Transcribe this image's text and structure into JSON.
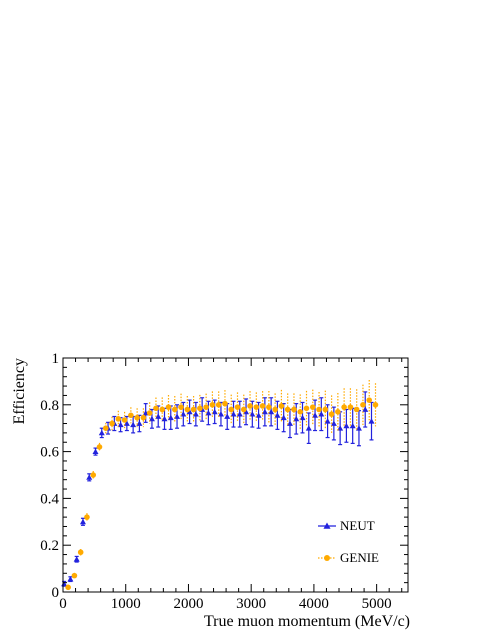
{
  "chart_data": {
    "type": "scatter",
    "xlabel": "True muon momentum (MeV/c)",
    "ylabel": "Efficiency",
    "xlim": [
      0,
      5500
    ],
    "ylim": [
      0,
      1
    ],
    "x_ticks": [
      0,
      1000,
      2000,
      3000,
      4000,
      5000
    ],
    "x_tick_labels": [
      "0",
      "1000",
      "2000",
      "3000",
      "4000",
      "5000"
    ],
    "y_ticks": [
      0,
      0.2,
      0.4,
      0.6,
      0.8,
      1
    ],
    "y_tick_labels": [
      "0",
      "0.2",
      "0.4",
      "0.6",
      "0.8",
      "1"
    ],
    "grid": false,
    "legend_position": "bottom-right",
    "series": [
      {
        "name": "NEUT",
        "color": "#2222dd",
        "marker": "triangle",
        "x": [
          50,
          150,
          250,
          350,
          450,
          550,
          650,
          750,
          850,
          950,
          1050,
          1150,
          1250,
          1350,
          1450,
          1550,
          1650,
          1750,
          1850,
          1950,
          2050,
          2150,
          2250,
          2350,
          2450,
          2550,
          2650,
          2750,
          2850,
          2950,
          3050,
          3150,
          3250,
          3350,
          3450,
          3550,
          3650,
          3750,
          3850,
          3950,
          4050,
          4150,
          4250,
          4350,
          4450,
          4550,
          4650,
          4750,
          4850,
          4950
        ],
        "y": [
          0.035,
          0.055,
          0.14,
          0.3,
          0.49,
          0.6,
          0.68,
          0.7,
          0.72,
          0.715,
          0.72,
          0.715,
          0.72,
          0.765,
          0.74,
          0.75,
          0.74,
          0.745,
          0.75,
          0.76,
          0.77,
          0.76,
          0.78,
          0.765,
          0.77,
          0.76,
          0.75,
          0.76,
          0.76,
          0.77,
          0.76,
          0.755,
          0.77,
          0.77,
          0.755,
          0.745,
          0.72,
          0.74,
          0.745,
          0.7,
          0.755,
          0.76,
          0.73,
          0.72,
          0.7,
          0.71,
          0.71,
          0.7,
          0.78,
          0.73
        ],
        "err": [
          0.01,
          0.01,
          0.012,
          0.015,
          0.015,
          0.015,
          0.02,
          0.025,
          0.03,
          0.03,
          0.03,
          0.035,
          0.035,
          0.04,
          0.04,
          0.045,
          0.045,
          0.05,
          0.05,
          0.05,
          0.05,
          0.05,
          0.05,
          0.05,
          0.05,
          0.05,
          0.055,
          0.055,
          0.055,
          0.055,
          0.055,
          0.055,
          0.06,
          0.06,
          0.06,
          0.06,
          0.06,
          0.065,
          0.065,
          0.065,
          0.065,
          0.07,
          0.07,
          0.07,
          0.07,
          0.07,
          0.075,
          0.075,
          0.075,
          0.08
        ]
      },
      {
        "name": "GENIE",
        "color": "#ffaa00",
        "marker": "circle",
        "x": [
          50,
          150,
          250,
          350,
          450,
          550,
          650,
          750,
          850,
          950,
          1050,
          1150,
          1250,
          1350,
          1450,
          1550,
          1650,
          1750,
          1850,
          1950,
          2050,
          2150,
          2250,
          2350,
          2450,
          2550,
          2650,
          2750,
          2850,
          2950,
          3050,
          3150,
          3250,
          3350,
          3450,
          3550,
          3650,
          3750,
          3850,
          3950,
          4050,
          4150,
          4250,
          4350,
          4450,
          4550,
          4650,
          4750,
          4850,
          4950
        ],
        "y": [
          0.02,
          0.07,
          0.17,
          0.32,
          0.5,
          0.62,
          0.7,
          0.72,
          0.74,
          0.735,
          0.755,
          0.745,
          0.745,
          0.765,
          0.785,
          0.78,
          0.79,
          0.78,
          0.79,
          0.78,
          0.78,
          0.785,
          0.79,
          0.8,
          0.8,
          0.805,
          0.78,
          0.79,
          0.78,
          0.795,
          0.79,
          0.795,
          0.79,
          0.78,
          0.795,
          0.78,
          0.78,
          0.77,
          0.785,
          0.79,
          0.78,
          0.78,
          0.76,
          0.77,
          0.79,
          0.79,
          0.78,
          0.8,
          0.82,
          0.8
        ]
      }
    ]
  }
}
